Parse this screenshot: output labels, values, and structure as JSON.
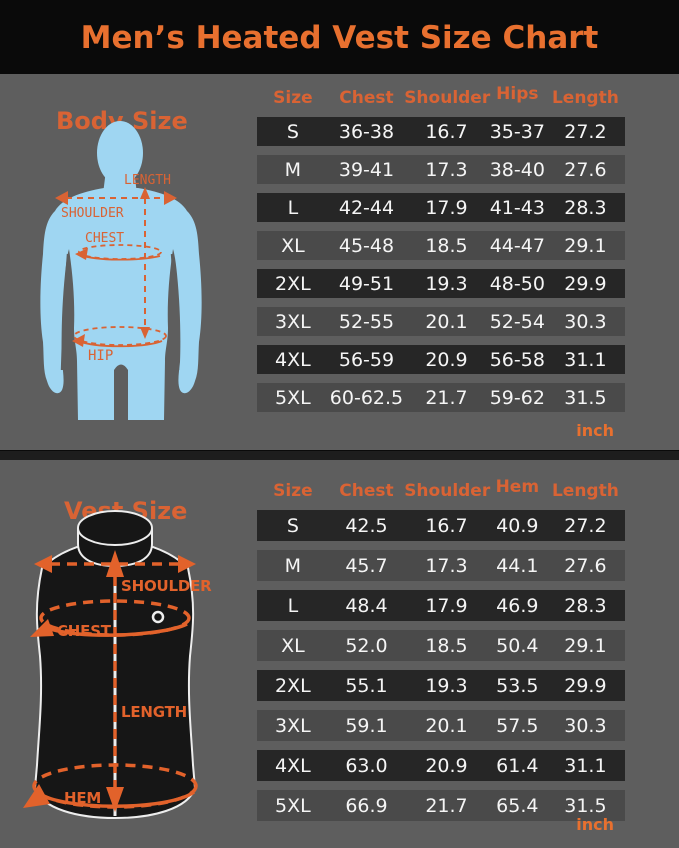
{
  "title": "Men’s Heated Vest Size Chart",
  "body_size": {
    "heading": "Body Size",
    "unit": "inch",
    "diagram_labels": {
      "length": "LENGTH",
      "shoulder": "SHOULDER",
      "chest": "CHEST",
      "hip": "HIP"
    },
    "columns": [
      "Size",
      "Chest",
      "Shoulder",
      "Hips",
      "Length"
    ],
    "rows": [
      [
        "S",
        "36-38",
        "16.7",
        "35-37",
        "27.2"
      ],
      [
        "M",
        "39-41",
        "17.3",
        "38-40",
        "27.6"
      ],
      [
        "L",
        "42-44",
        "17.9",
        "41-43",
        "28.3"
      ],
      [
        "XL",
        "45-48",
        "18.5",
        "44-47",
        "29.1"
      ],
      [
        "2XL",
        "49-51",
        "19.3",
        "48-50",
        "29.9"
      ],
      [
        "3XL",
        "52-55",
        "20.1",
        "52-54",
        "30.3"
      ],
      [
        "4XL",
        "56-59",
        "20.9",
        "56-58",
        "31.1"
      ],
      [
        "5XL",
        "60-62.5",
        "21.7",
        "59-62",
        "31.5"
      ]
    ]
  },
  "vest_size": {
    "heading": "Vest Size",
    "unit": "inch",
    "diagram_labels": {
      "shoulder": "SHOULDER",
      "chest": "CHEST",
      "length": "LENGTH",
      "hem": "HEM"
    },
    "columns": [
      "Size",
      "Chest",
      "Shoulder",
      "Hem",
      "Length"
    ],
    "rows": [
      [
        "S",
        "42.5",
        "16.7",
        "40.9",
        "27.2"
      ],
      [
        "M",
        "45.7",
        "17.3",
        "44.1",
        "27.6"
      ],
      [
        "L",
        "48.4",
        "17.9",
        "46.9",
        "28.3"
      ],
      [
        "XL",
        "52.0",
        "18.5",
        "50.4",
        "29.1"
      ],
      [
        "2XL",
        "55.1",
        "19.3",
        "53.5",
        "29.9"
      ],
      [
        "3XL",
        "59.1",
        "20.1",
        "57.5",
        "30.3"
      ],
      [
        "4XL",
        "63.0",
        "20.9",
        "61.4",
        "31.1"
      ],
      [
        "5XL",
        "66.9",
        "21.7",
        "65.4",
        "31.5"
      ]
    ]
  },
  "colors": {
    "accent": "#E8702F",
    "label": "#D96334",
    "page_bg": "#5E5E5E",
    "header_bg": "#0A0A0A",
    "row_dark": "#262626",
    "row_light": "#4A4A4A",
    "sil": "#9FD6F2",
    "vest": "#161616",
    "cell": "#F5F5F5"
  }
}
